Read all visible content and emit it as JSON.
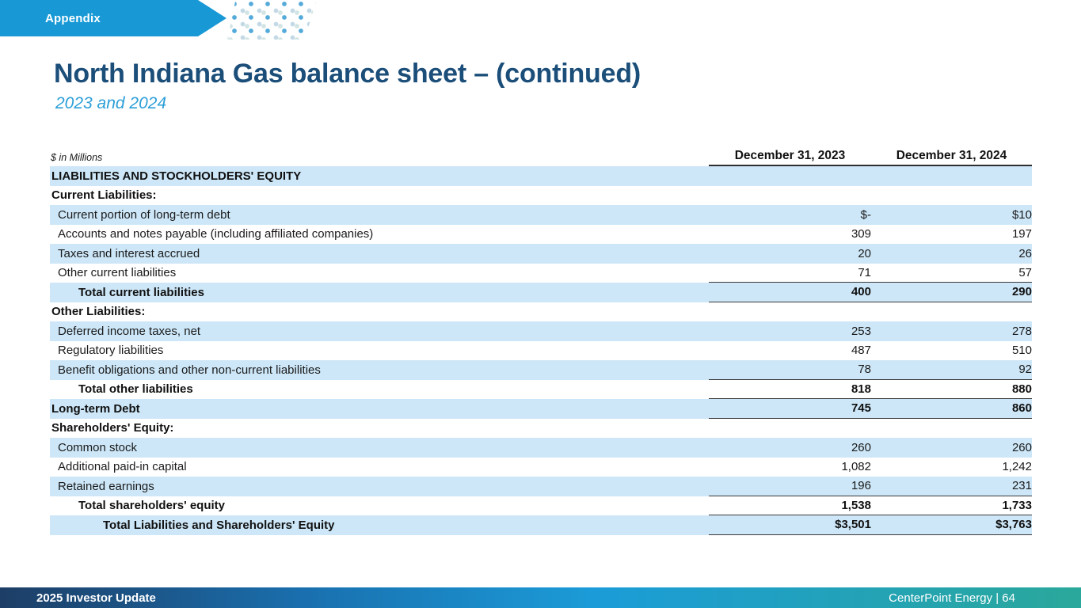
{
  "banner": {
    "label": "Appendix"
  },
  "header": {
    "title": "North Indiana Gas balance sheet – (continued)",
    "subtitle": "2023 and 2024"
  },
  "table": {
    "units_note": "$ in Millions",
    "columns": [
      "December 31, 2023",
      "December 31, 2024"
    ],
    "rows": [
      {
        "label": "LIABILITIES AND STOCKHOLDERS' EQUITY",
        "values": [
          "",
          ""
        ],
        "indent": "section",
        "bold": true,
        "shaded": true,
        "rule_below": false
      },
      {
        "label": "Current Liabilities:",
        "values": [
          "",
          ""
        ],
        "indent": "section",
        "bold": true,
        "shaded": false,
        "rule_below": false
      },
      {
        "label": "Current portion of long-term debt",
        "values": [
          "$-",
          "$10"
        ],
        "indent": "detail",
        "bold": false,
        "shaded": true,
        "rule_below": false
      },
      {
        "label": "Accounts and notes payable (including affiliated companies)",
        "values": [
          "309",
          "197"
        ],
        "indent": "detail",
        "bold": false,
        "shaded": false,
        "rule_below": false
      },
      {
        "label": "Taxes and interest accrued",
        "values": [
          "20",
          "26"
        ],
        "indent": "detail",
        "bold": false,
        "shaded": true,
        "rule_below": false
      },
      {
        "label": "Other current liabilities",
        "values": [
          "71",
          "57"
        ],
        "indent": "detail",
        "bold": false,
        "shaded": false,
        "rule_below": true
      },
      {
        "label": "Total current liabilities",
        "values": [
          "400",
          "290"
        ],
        "indent": "total",
        "bold": true,
        "shaded": true,
        "rule_below": true
      },
      {
        "label": "Other Liabilities:",
        "values": [
          "",
          ""
        ],
        "indent": "section",
        "bold": true,
        "shaded": false,
        "rule_below": false
      },
      {
        "label": "Deferred income taxes, net",
        "values": [
          "253",
          "278"
        ],
        "indent": "detail",
        "bold": false,
        "shaded": true,
        "rule_below": false
      },
      {
        "label": "Regulatory liabilities",
        "values": [
          "487",
          "510"
        ],
        "indent": "detail",
        "bold": false,
        "shaded": false,
        "rule_below": false
      },
      {
        "label": "Benefit obligations and other non-current liabilities",
        "values": [
          "78",
          "92"
        ],
        "indent": "detail",
        "bold": false,
        "shaded": true,
        "rule_below": true
      },
      {
        "label": "Total other liabilities",
        "values": [
          "818",
          "880"
        ],
        "indent": "total",
        "bold": true,
        "shaded": false,
        "rule_below": true
      },
      {
        "label": "Long-term Debt",
        "values": [
          "745",
          "860"
        ],
        "indent": "section",
        "bold": true,
        "shaded": true,
        "rule_below": true
      },
      {
        "label": "Shareholders' Equity:",
        "values": [
          "",
          ""
        ],
        "indent": "section",
        "bold": true,
        "shaded": false,
        "rule_below": false
      },
      {
        "label": "Common stock",
        "values": [
          "260",
          "260"
        ],
        "indent": "detail",
        "bold": false,
        "shaded": true,
        "rule_below": false
      },
      {
        "label": "Additional paid-in capital",
        "values": [
          "1,082",
          "1,242"
        ],
        "indent": "detail",
        "bold": false,
        "shaded": false,
        "rule_below": false
      },
      {
        "label": "Retained earnings",
        "values": [
          "196",
          "231"
        ],
        "indent": "detail",
        "bold": false,
        "shaded": true,
        "rule_below": true
      },
      {
        "label": "Total shareholders' equity",
        "values": [
          "1,538",
          "1,733"
        ],
        "indent": "total",
        "bold": true,
        "shaded": false,
        "rule_below": true
      },
      {
        "label": "Total Liabilities and Shareholders' Equity",
        "values": [
          "$3,501",
          "$3,763"
        ],
        "indent": "grand",
        "bold": true,
        "shaded": true,
        "rule_below": true
      }
    ]
  },
  "footer": {
    "left": "2025 Investor Update",
    "right": "CenterPoint Energy | 64"
  },
  "colors": {
    "banner_blue": "#1899d6",
    "title_navy": "#1b4e79",
    "subtitle_blue": "#2d9fd8",
    "row_band_blue": "#cde7f8",
    "rule_line": "#3a3a3a",
    "footer_gradient": [
      "#1d3e66",
      "#1a6fae",
      "#1b9cd8",
      "#2aa89b"
    ]
  }
}
